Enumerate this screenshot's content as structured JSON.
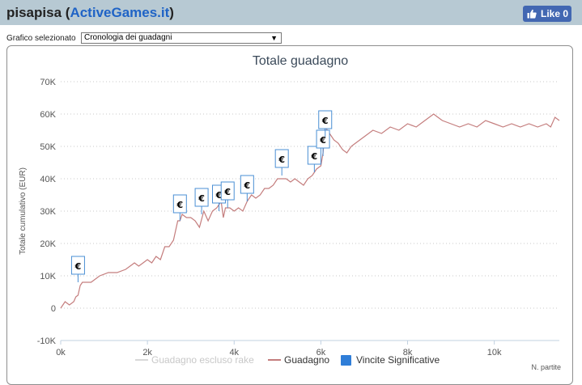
{
  "app": {
    "user": "pisapisa",
    "site": "ActiveGames.it",
    "like_label": "Like 0"
  },
  "selector": {
    "label": "Grafico selezionato",
    "value": "Cronologia dei guadagni"
  },
  "colors": {
    "line": "#c47d7d",
    "rake_line": "#d8d8d8",
    "marker_border": "#4a8fd4",
    "legend_square": "#2f7ed8"
  },
  "chart_data": {
    "type": "line",
    "title": "Totale guadagno",
    "ylabel": "Totale cumulativo (EUR)",
    "xlabel": "N. partite",
    "xlim": [
      0,
      11500
    ],
    "ylim": [
      -10000,
      70000
    ],
    "x_ticks": [
      0,
      2000,
      4000,
      6000,
      8000,
      10000
    ],
    "x_tick_labels": [
      "0k",
      "2k",
      "4k",
      "6k",
      "8k",
      "10k"
    ],
    "y_ticks": [
      -10000,
      0,
      10000,
      20000,
      30000,
      40000,
      50000,
      60000,
      70000
    ],
    "y_tick_labels": [
      "-10K",
      "0",
      "10K",
      "20K",
      "30K",
      "40K",
      "50K",
      "60K",
      "70K"
    ],
    "grid": true,
    "legend_position": "bottom",
    "legend": [
      {
        "label": "Guadagno escluso rake",
        "style": "line",
        "muted": true
      },
      {
        "label": "Guadagno",
        "style": "line",
        "muted": false
      },
      {
        "label": "Vincite Significative",
        "style": "square",
        "muted": false
      }
    ],
    "series": [
      {
        "name": "Guadagno",
        "x": [
          0,
          100,
          200,
          300,
          350,
          400,
          450,
          500,
          700,
          900,
          1100,
          1300,
          1500,
          1700,
          1800,
          1900,
          2000,
          2100,
          2200,
          2300,
          2400,
          2450,
          2500,
          2600,
          2700,
          2750,
          2800,
          2900,
          3000,
          3100,
          3200,
          3300,
          3400,
          3500,
          3600,
          3700,
          3750,
          3800,
          3900,
          4000,
          4100,
          4200,
          4300,
          4400,
          4500,
          4600,
          4700,
          4800,
          4900,
          5000,
          5100,
          5200,
          5300,
          5400,
          5500,
          5600,
          5700,
          5800,
          5850,
          5900,
          6000,
          6050,
          6100,
          6200,
          6300,
          6400,
          6500,
          6600,
          6700,
          6800,
          7000,
          7200,
          7400,
          7600,
          7800,
          8000,
          8200,
          8400,
          8600,
          8700,
          8800,
          9000,
          9200,
          9400,
          9600,
          9800,
          10000,
          10200,
          10400,
          10600,
          10800,
          11000,
          11200,
          11300,
          11400,
          11500
        ],
        "y": [
          0,
          2000,
          1000,
          2000,
          3500,
          4000,
          7000,
          8000,
          8000,
          10000,
          11000,
          11000,
          12000,
          14000,
          13000,
          14000,
          15000,
          14000,
          16000,
          15000,
          19000,
          19000,
          19000,
          21000,
          27000,
          27000,
          29000,
          28000,
          28000,
          27000,
          25000,
          30000,
          27000,
          30000,
          31000,
          33000,
          28000,
          31000,
          31000,
          30000,
          31000,
          30000,
          33000,
          35000,
          34000,
          35000,
          37000,
          37000,
          38000,
          40000,
          40000,
          40000,
          39000,
          40000,
          39000,
          38000,
          40000,
          41000,
          42000,
          43000,
          44000,
          48000,
          56000,
          54000,
          52000,
          51000,
          49000,
          48000,
          50000,
          51000,
          53000,
          55000,
          54000,
          56000,
          55000,
          57000,
          56000,
          58000,
          60000,
          59000,
          58000,
          57000,
          56000,
          57000,
          56000,
          58000,
          57000,
          56000,
          57000,
          56000,
          57000,
          56000,
          57000,
          56000,
          59000,
          58000
        ]
      }
    ],
    "markers": [
      {
        "x": 400,
        "y": 8000,
        "label": "€"
      },
      {
        "x": 2750,
        "y": 27000,
        "label": "€"
      },
      {
        "x": 3250,
        "y": 29000,
        "label": "€"
      },
      {
        "x": 3650,
        "y": 30000,
        "label": "€"
      },
      {
        "x": 3850,
        "y": 31000,
        "label": "€"
      },
      {
        "x": 4300,
        "y": 33000,
        "label": "€"
      },
      {
        "x": 5100,
        "y": 41000,
        "label": "€"
      },
      {
        "x": 5850,
        "y": 42000,
        "label": "€"
      },
      {
        "x": 6050,
        "y": 47000,
        "label": "€"
      },
      {
        "x": 6100,
        "y": 53000,
        "label": "€"
      }
    ]
  }
}
